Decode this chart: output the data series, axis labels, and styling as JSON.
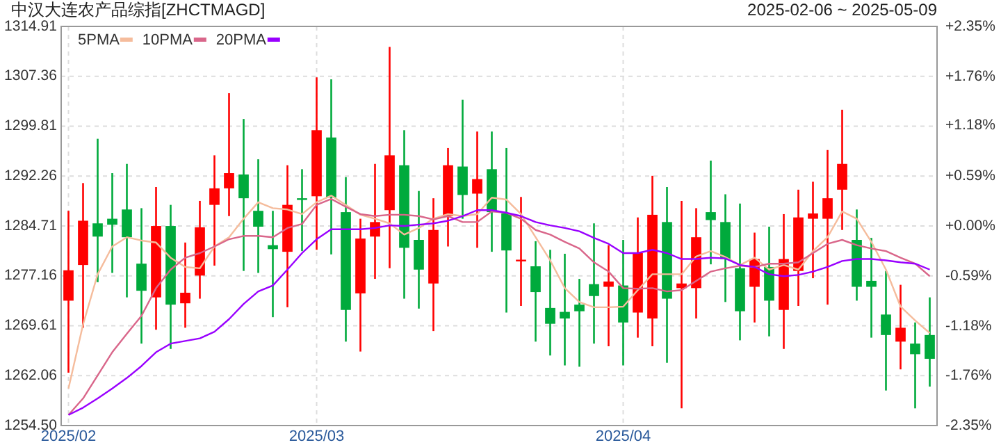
{
  "chart_data": {
    "type": "candlestick",
    "title": "中汉大连农产品综指[ZHCTMAGD]",
    "subtitle": "2025-02-06 ~ 2025-05-09",
    "categories": [
      "2025/02",
      null,
      null,
      null,
      null,
      null,
      null,
      null,
      null,
      null,
      null,
      null,
      null,
      null,
      null,
      null,
      null,
      "2025/03",
      null,
      null,
      null,
      null,
      null,
      null,
      null,
      null,
      null,
      null,
      null,
      null,
      null,
      null,
      null,
      null,
      null,
      null,
      null,
      null,
      "2025/04",
      null,
      null,
      null,
      null,
      null,
      null,
      null,
      null,
      null,
      null,
      null,
      null,
      null,
      null,
      null,
      null,
      null,
      null,
      null,
      null,
      null
    ],
    "ylim": [
      1254.5,
      1314.91
    ],
    "yticks": [
      {
        "value": 1254.5,
        "label": "1254.50"
      },
      1262.06,
      1269.61,
      1277.16,
      1284.71,
      1292.26,
      1299.81,
      1307.36,
      1314.91
    ],
    "y2lim": [
      -2.35,
      2.35
    ],
    "y2ticks": [
      {
        "value": -2.35,
        "label": "-2.35%"
      },
      {
        "value": -1.76,
        "label": "-1.76%"
      },
      {
        "value": -1.18,
        "label": "-1.18%"
      },
      {
        "value": -0.59,
        "label": "-0.59%"
      },
      {
        "value": 0,
        "label": "+0.00%"
      },
      {
        "value": 0.59,
        "label": "+0.59%"
      },
      {
        "value": 1.18,
        "label": "+1.18%"
      },
      {
        "value": 1.76,
        "label": "+1.76%"
      },
      {
        "value": 2.35,
        "label": "+2.35%"
      }
    ],
    "grid": true,
    "legend": "top left",
    "series": [
      {
        "colors": [
          "#ff0000",
          "#ff0000",
          "#00aa3c",
          "#00aa3c",
          "#00aa3c",
          "#00aa3c",
          "#ff0000",
          "#00aa3c",
          "#ff0000",
          "#ff0000",
          "#ff0000",
          "#ff0000",
          "#00aa3c",
          "#00aa3c",
          "#00aa3c",
          "#ff0000",
          "#00aa3c",
          "#ff0000",
          "#00aa3c",
          "#00aa3c",
          "#ff0000",
          "#ff0000",
          "#ff0000",
          "#00aa3c",
          "#00aa3c",
          "#ff0000",
          "#ff0000",
          "#00aa3c",
          "#ff0000",
          "#00aa3c",
          "#00aa3c",
          "#ff0000",
          "#00aa3c",
          "#00aa3c",
          "#00aa3c",
          "#00aa3c",
          "#00aa3c",
          "#ff0000",
          "#00aa3c",
          "#ff0000",
          "#ff0000",
          "#00aa3c",
          "#ff0000",
          "#ff0000",
          "#00aa3c",
          "#00aa3c",
          "#00aa3c",
          "#ff0000",
          "#00aa3c",
          "#ff0000",
          "#ff0000",
          "#ff0000",
          "#ff0000",
          "#ff0000",
          "#00aa3c",
          "#00aa3c",
          "#00aa3c",
          "#ff0000",
          "#00aa3c",
          "#00aa3c"
        ],
        "ohlc": [
          [
            1273.4,
            1287.0,
            1262.5,
            1278.0
          ],
          [
            1278.8,
            1291.2,
            1269.3,
            1285.5
          ],
          [
            1285.1,
            1297.9,
            1276.2,
            1283.1
          ],
          [
            1285.8,
            1292.7,
            1277.6,
            1284.9
          ],
          [
            1287.2,
            1294.1,
            1273.9,
            1283.0
          ],
          [
            1279.0,
            1287.4,
            1266.9,
            1274.9
          ],
          [
            1273.9,
            1290.6,
            1269.0,
            1284.7
          ],
          [
            1284.7,
            1287.9,
            1266.1,
            1272.8
          ],
          [
            1273.0,
            1282.2,
            1269.3,
            1274.6
          ],
          [
            1277.2,
            1288.5,
            1273.7,
            1284.5
          ],
          [
            1287.9,
            1295.4,
            1278.7,
            1290.4
          ],
          [
            1290.4,
            1304.8,
            1286.2,
            1292.7
          ],
          [
            1292.5,
            1300.9,
            1277.9,
            1288.9
          ],
          [
            1287.0,
            1294.8,
            1277.6,
            1284.6
          ],
          [
            1281.8,
            1287.0,
            1270.9,
            1281.2
          ],
          [
            1280.8,
            1293.9,
            1272.4,
            1287.9
          ],
          [
            1288.9,
            1293.3,
            1280.9,
            1288.8
          ],
          [
            1289.2,
            1307.2,
            1281.1,
            1299.2
          ],
          [
            1298.1,
            1306.9,
            1280.4,
            1289.0
          ],
          [
            1286.8,
            1292.1,
            1267.2,
            1272.0
          ],
          [
            1274.5,
            1285.8,
            1265.7,
            1282.8
          ],
          [
            1283.1,
            1294.1,
            1276.7,
            1285.3
          ],
          [
            1287.1,
            1311.8,
            1278.3,
            1295.4
          ],
          [
            1293.9,
            1299.2,
            1273.7,
            1281.4
          ],
          [
            1282.6,
            1290.0,
            1272.2,
            1278.1
          ],
          [
            1276.0,
            1288.9,
            1268.8,
            1284.1
          ],
          [
            1286.2,
            1296.5,
            1281.6,
            1293.9
          ],
          [
            1293.7,
            1303.8,
            1285.8,
            1289.4
          ],
          [
            1289.6,
            1299.0,
            1281.4,
            1291.8
          ],
          [
            1293.3,
            1299.0,
            1280.8,
            1286.8
          ],
          [
            1286.6,
            1296.5,
            1271.6,
            1281.0
          ],
          [
            1279.4,
            1289.1,
            1272.6,
            1279.6
          ],
          [
            1278.6,
            1282.4,
            1267.2,
            1274.7
          ],
          [
            1272.3,
            1281.1,
            1265.1,
            1269.9
          ],
          [
            1271.7,
            1280.5,
            1263.6,
            1270.7
          ],
          [
            1272.8,
            1276.7,
            1263.4,
            1271.8
          ],
          [
            1275.9,
            1285.1,
            1266.9,
            1274.1
          ],
          [
            1275.5,
            1281.8,
            1266.5,
            1276.3
          ],
          [
            1275.7,
            1282.6,
            1263.6,
            1270.1
          ],
          [
            1271.6,
            1286.0,
            1267.8,
            1280.6
          ],
          [
            1270.7,
            1292.3,
            1266.5,
            1286.4
          ],
          [
            1285.3,
            1290.6,
            1264.0,
            1273.7
          ],
          [
            1275.3,
            1288.5,
            1257.1,
            1276.0
          ],
          [
            1275.3,
            1287.4,
            1270.7,
            1283.0
          ],
          [
            1286.8,
            1294.6,
            1278.9,
            1285.6
          ],
          [
            1285.3,
            1289.5,
            1273.2,
            1279.7
          ],
          [
            1278.3,
            1288.1,
            1267.4,
            1271.8
          ],
          [
            1275.5,
            1283.7,
            1270.1,
            1279.7
          ],
          [
            1278.5,
            1284.6,
            1268.0,
            1273.4
          ],
          [
            1272.0,
            1286.5,
            1266.1,
            1279.7
          ],
          [
            1277.9,
            1290.2,
            1272.6,
            1286.0
          ],
          [
            1285.8,
            1291.4,
            1276.8,
            1286.6
          ],
          [
            1285.8,
            1296.2,
            1272.8,
            1288.9
          ],
          [
            1290.2,
            1302.3,
            1284.1,
            1294.1
          ],
          [
            1282.6,
            1287.2,
            1273.4,
            1275.5
          ],
          [
            1276.4,
            1282.9,
            1267.8,
            1275.5
          ],
          [
            1271.3,
            1277.9,
            1259.8,
            1268.2
          ],
          [
            1267.2,
            1275.8,
            1263.0,
            1269.3
          ],
          [
            1266.9,
            1270.1,
            1257.1,
            1265.3
          ],
          [
            1268.2,
            1273.9,
            1260.4,
            1264.6
          ]
        ]
      },
      {
        "type": "line",
        "name": "5PMA",
        "color": "#f5bc9c",
        "values": [
          1260.1,
          1269.8,
          1277.4,
          1281.6,
          1283.0,
          1282.5,
          1282.2,
          1279.9,
          1278.5,
          1278.3,
          1281.6,
          1283.0,
          1285.8,
          1288.3,
          1287.4,
          1287.2,
          1286.5,
          1288.3,
          1289.3,
          1287.9,
          1286.4,
          1285.8,
          1285.1,
          1283.4,
          1284.4,
          1285.8,
          1286.5,
          1286.2,
          1286.5,
          1289.0,
          1288.7,
          1286.5,
          1283.0,
          1279.5,
          1275.3,
          1273.2,
          1272.4,
          1272.4,
          1272.5,
          1275.0,
          1277.4,
          1277.4,
          1277.4,
          1280.1,
          1280.9,
          1280.0,
          1278.8,
          1279.9,
          1278.1,
          1278.8,
          1278.1,
          1280.9,
          1283.0,
          1286.9,
          1285.8,
          1282.3,
          1278.1,
          1272.5,
          1270.4,
          1268.5
        ]
      },
      {
        "type": "line",
        "name": "10PMA",
        "color": "#d9668a",
        "values": [
          1256.1,
          1258.6,
          1262.1,
          1265.6,
          1268.4,
          1271.1,
          1275.3,
          1278.1,
          1279.9,
          1280.6,
          1281.6,
          1282.7,
          1283.2,
          1283.2,
          1283.0,
          1284.4,
          1285.0,
          1287.9,
          1288.8,
          1287.6,
          1286.5,
          1286.2,
          1286.4,
          1286.4,
          1286.2,
          1285.7,
          1286.2,
          1285.3,
          1285.3,
          1286.9,
          1286.7,
          1285.8,
          1284.1,
          1283.4,
          1282.3,
          1281.3,
          1279.2,
          1277.8,
          1275.3,
          1275.2,
          1275.3,
          1274.8,
          1275.0,
          1276.4,
          1277.8,
          1278.3,
          1278.7,
          1278.5,
          1279.0,
          1279.0,
          1279.2,
          1280.6,
          1282.0,
          1282.6,
          1281.8,
          1281.3,
          1280.9,
          1279.9,
          1279.0,
          1277.1
        ]
      },
      {
        "type": "line",
        "name": "20PMA",
        "color": "#9900ff",
        "values": [
          1256.1,
          1257.2,
          1258.6,
          1260.1,
          1261.7,
          1263.5,
          1265.6,
          1266.9,
          1267.3,
          1267.7,
          1268.7,
          1270.6,
          1272.9,
          1274.8,
          1275.7,
          1278.1,
          1280.6,
          1282.7,
          1284.2,
          1284.2,
          1284.2,
          1284.4,
          1284.8,
          1284.7,
          1284.9,
          1285.1,
          1285.5,
          1286.2,
          1287.1,
          1287.1,
          1286.7,
          1286.2,
          1285.3,
          1284.8,
          1284.4,
          1283.9,
          1282.9,
          1282.0,
          1280.6,
          1280.6,
          1281.1,
          1280.6,
          1279.7,
          1279.7,
          1279.9,
          1279.8,
          1278.8,
          1278.5,
          1277.4,
          1277.1,
          1277.3,
          1277.8,
          1278.5,
          1279.4,
          1279.7,
          1279.7,
          1279.5,
          1279.2,
          1279.0,
          1278.1
        ]
      }
    ]
  }
}
